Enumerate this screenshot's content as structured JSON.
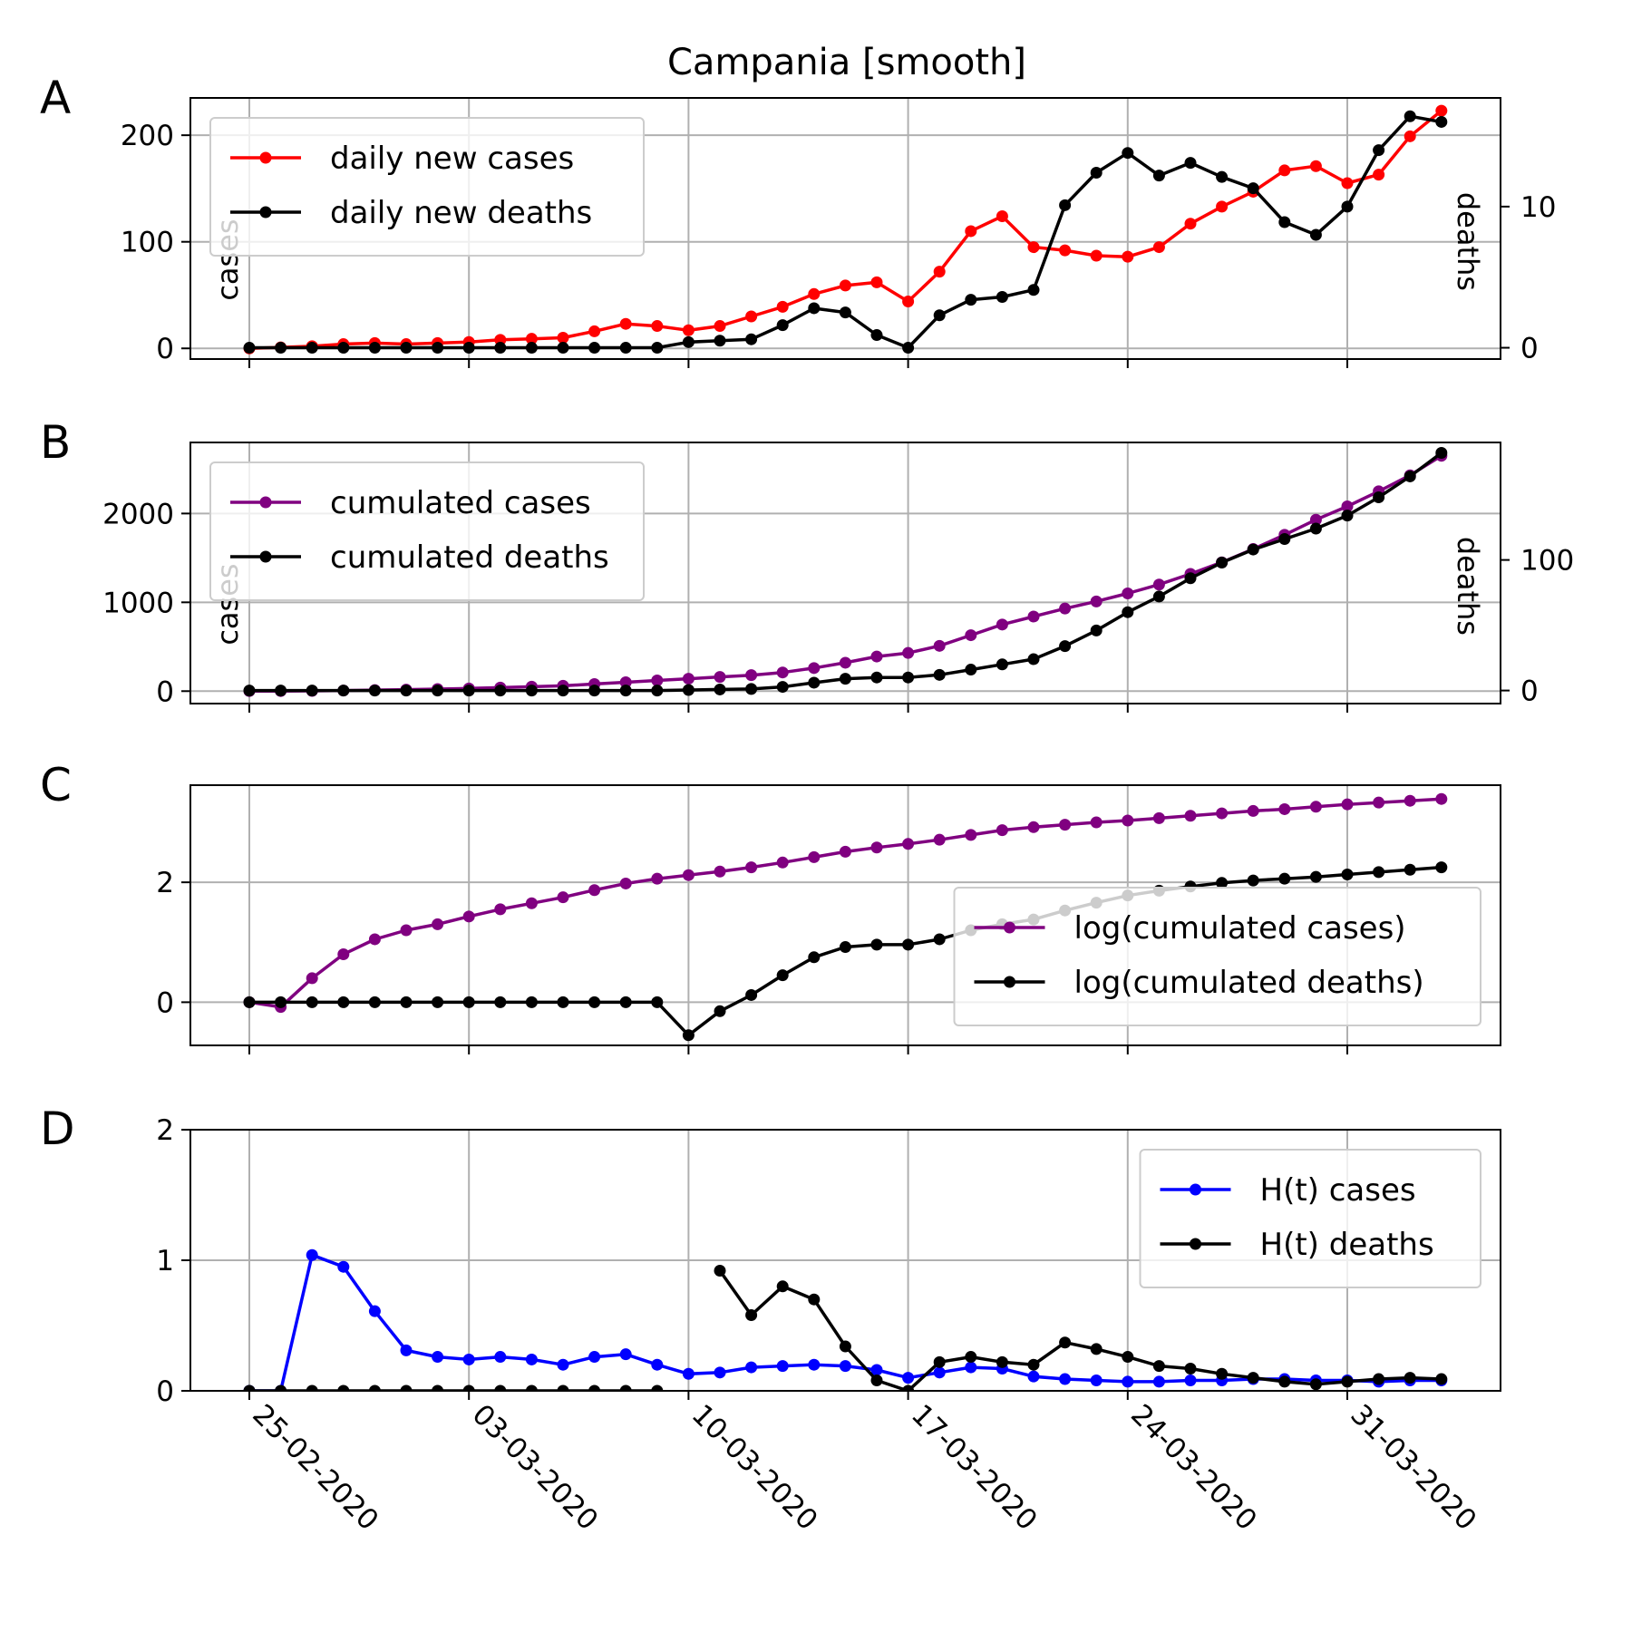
{
  "chart_data": {
    "title": "Campania [smooth]",
    "type": "line",
    "x_tick_labels": [
      "25-02-2020",
      "03-03-2020",
      "10-03-2020",
      "17-03-2020",
      "24-03-2020",
      "31-03-2020"
    ],
    "x_range_days_from_first_tick": [
      0,
      38
    ],
    "panels": [
      {
        "label": "A",
        "ylabel_left": "cases",
        "ylabel_right": "deaths",
        "ylim_left": [
          -10,
          235
        ],
        "ylim_right": [
          -0.8,
          17.7
        ],
        "yticks_left": [
          0,
          100,
          200
        ],
        "yticks_right": [
          0,
          10
        ],
        "legend": "upper-left",
        "series": [
          {
            "name": "daily new cases",
            "color": "#ff0000",
            "axis": "left",
            "values": [
              0,
              1,
              2,
              4,
              5,
              4,
              5,
              6,
              8,
              9,
              10,
              16,
              23,
              21,
              17,
              21,
              30,
              39,
              51,
              59,
              62,
              44,
              72,
              110,
              124,
              95,
              92,
              87,
              86,
              95,
              117,
              133,
              147,
              167,
              171,
              155,
              163,
              199,
              223
            ]
          },
          {
            "name": "daily new deaths",
            "color": "#000000",
            "axis": "right",
            "values": [
              0,
              0,
              0,
              0,
              0,
              0,
              0,
              0,
              0,
              0,
              0,
              0,
              0,
              0,
              0.4,
              0.5,
              0.6,
              1.6,
              2.8,
              2.5,
              0.9,
              0,
              2.3,
              3.4,
              3.6,
              4.1,
              10.1,
              12.4,
              13.8,
              12.2,
              13.1,
              12.1,
              11.3,
              8.9,
              8.0,
              10.0,
              14.0,
              16.4,
              16.0
            ]
          }
        ]
      },
      {
        "label": "B",
        "ylabel_left": "cases",
        "ylabel_right": "deaths",
        "ylim_left": [
          -140,
          2800
        ],
        "ylim_right": [
          -10,
          190
        ],
        "yticks_left": [
          0,
          1000,
          2000
        ],
        "yticks_right": [
          0,
          100
        ],
        "legend": "upper-left",
        "series": [
          {
            "name": "cumulated cases",
            "color": "#800080",
            "axis": "left",
            "values": [
              1,
              0.8,
              3,
              7,
              12,
              17,
              23,
              30,
              40,
              50,
              60,
              80,
              100,
              120,
              140,
              160,
              180,
              210,
              260,
              320,
              390,
              430,
              510,
              630,
              750,
              840,
              930,
              1010,
              1100,
              1200,
              1320,
              1450,
              1600,
              1760,
              1930,
              2080,
              2250,
              2430,
              2650
            ]
          },
          {
            "name": "cumulated deaths",
            "color": "#000000",
            "axis": "right",
            "values": [
              0,
              0,
              0,
              0,
              0,
              0,
              0,
              0,
              0,
              0,
              0,
              0,
              0,
              0,
              0.4,
              0.8,
              1.2,
              2.8,
              6,
              9,
              10,
              10,
              12,
              16,
              20,
              24,
              34,
              46,
              60,
              72,
              86,
              98,
              108,
              116,
              124,
              134,
              148,
              164,
              182
            ]
          }
        ]
      },
      {
        "label": "C",
        "ylim": [
          -0.72,
          3.62
        ],
        "yticks": [
          0,
          2
        ],
        "legend": "lower-right",
        "series": [
          {
            "name": "log(cumulated cases)",
            "color": "#800080",
            "values": [
              0,
              -0.08,
              0.4,
              0.8,
              1.05,
              1.2,
              1.3,
              1.43,
              1.55,
              1.65,
              1.75,
              1.87,
              1.98,
              2.06,
              2.12,
              2.18,
              2.25,
              2.33,
              2.42,
              2.51,
              2.58,
              2.64,
              2.71,
              2.79,
              2.87,
              2.92,
              2.96,
              3.0,
              3.03,
              3.07,
              3.11,
              3.15,
              3.19,
              3.22,
              3.26,
              3.3,
              3.33,
              3.36,
              3.39
            ]
          },
          {
            "name": "log(cumulated deaths)",
            "color": "#000000",
            "values": [
              0,
              0,
              0,
              0,
              0,
              0,
              0,
              0,
              0,
              0,
              0,
              0,
              0,
              0,
              -0.55,
              -0.15,
              0.12,
              0.45,
              0.75,
              0.92,
              0.96,
              0.96,
              1.05,
              1.2,
              1.3,
              1.38,
              1.53,
              1.66,
              1.78,
              1.86,
              1.93,
              1.99,
              2.03,
              2.06,
              2.09,
              2.13,
              2.17,
              2.21,
              2.25
            ]
          }
        ]
      },
      {
        "label": "D",
        "ylim": [
          0,
          2
        ],
        "yticks": [
          0,
          1,
          2
        ],
        "legend": "upper-right",
        "series": [
          {
            "name": "H(t) cases",
            "color": "#0000ff",
            "values": [
              0,
              0,
              1.04,
              0.95,
              0.61,
              0.31,
              0.26,
              0.24,
              0.26,
              0.24,
              0.2,
              0.26,
              0.28,
              0.2,
              0.13,
              0.14,
              0.18,
              0.19,
              0.2,
              0.19,
              0.16,
              0.1,
              0.14,
              0.18,
              0.17,
              0.11,
              0.09,
              0.08,
              0.07,
              0.07,
              0.08,
              0.08,
              0.09,
              0.09,
              0.08,
              0.08,
              0.07,
              0.08,
              0.08
            ]
          },
          {
            "name": "H(t) deaths",
            "color": "#000000",
            "values": [
              0,
              0,
              0,
              0,
              0,
              0,
              0,
              0,
              0,
              0,
              0,
              0,
              0,
              0,
              null,
              0.92,
              0.58,
              0.8,
              0.7,
              0.34,
              0.08,
              0,
              0.22,
              0.26,
              0.22,
              0.2,
              0.37,
              0.32,
              0.26,
              0.19,
              0.17,
              0.13,
              0.1,
              0.07,
              0.05,
              0.07,
              0.09,
              0.1,
              0.09
            ]
          }
        ]
      }
    ]
  }
}
